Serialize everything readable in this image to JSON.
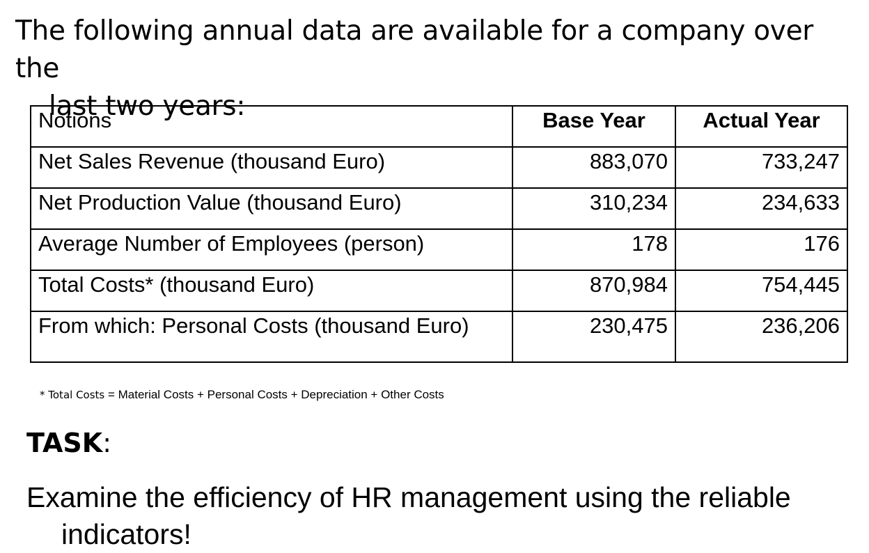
{
  "intro": {
    "line1": "The following annual data are available for a company over the",
    "line2": "last two years:"
  },
  "table": {
    "headers": [
      "Notions",
      "Base Year",
      "Actual Year"
    ],
    "rows": [
      {
        "notion": "Net Sales Revenue (thousand Euro)",
        "base": "883,070",
        "actual": "733,247"
      },
      {
        "notion": "Net Production Value (thousand Euro)",
        "base": "310,234",
        "actual": "234,633"
      },
      {
        "notion": "Average Number of Employees (person)",
        "base": "178",
        "actual": "176"
      },
      {
        "notion": "Total Costs* (thousand Euro)",
        "base": "870,984",
        "actual": "754,445"
      },
      {
        "notion": "From which: Personal Costs (thousand Euro)",
        "base": "230,475",
        "actual": "236,206"
      }
    ]
  },
  "footnote": {
    "lead": "* Total Costs",
    "rest": " = Material Costs + Personal Costs + Depreciation + Other Costs"
  },
  "task": {
    "label": "TASK",
    "colon": ":",
    "line1": "Examine the efficiency of HR management using the reliable",
    "line2": "indicators!"
  }
}
